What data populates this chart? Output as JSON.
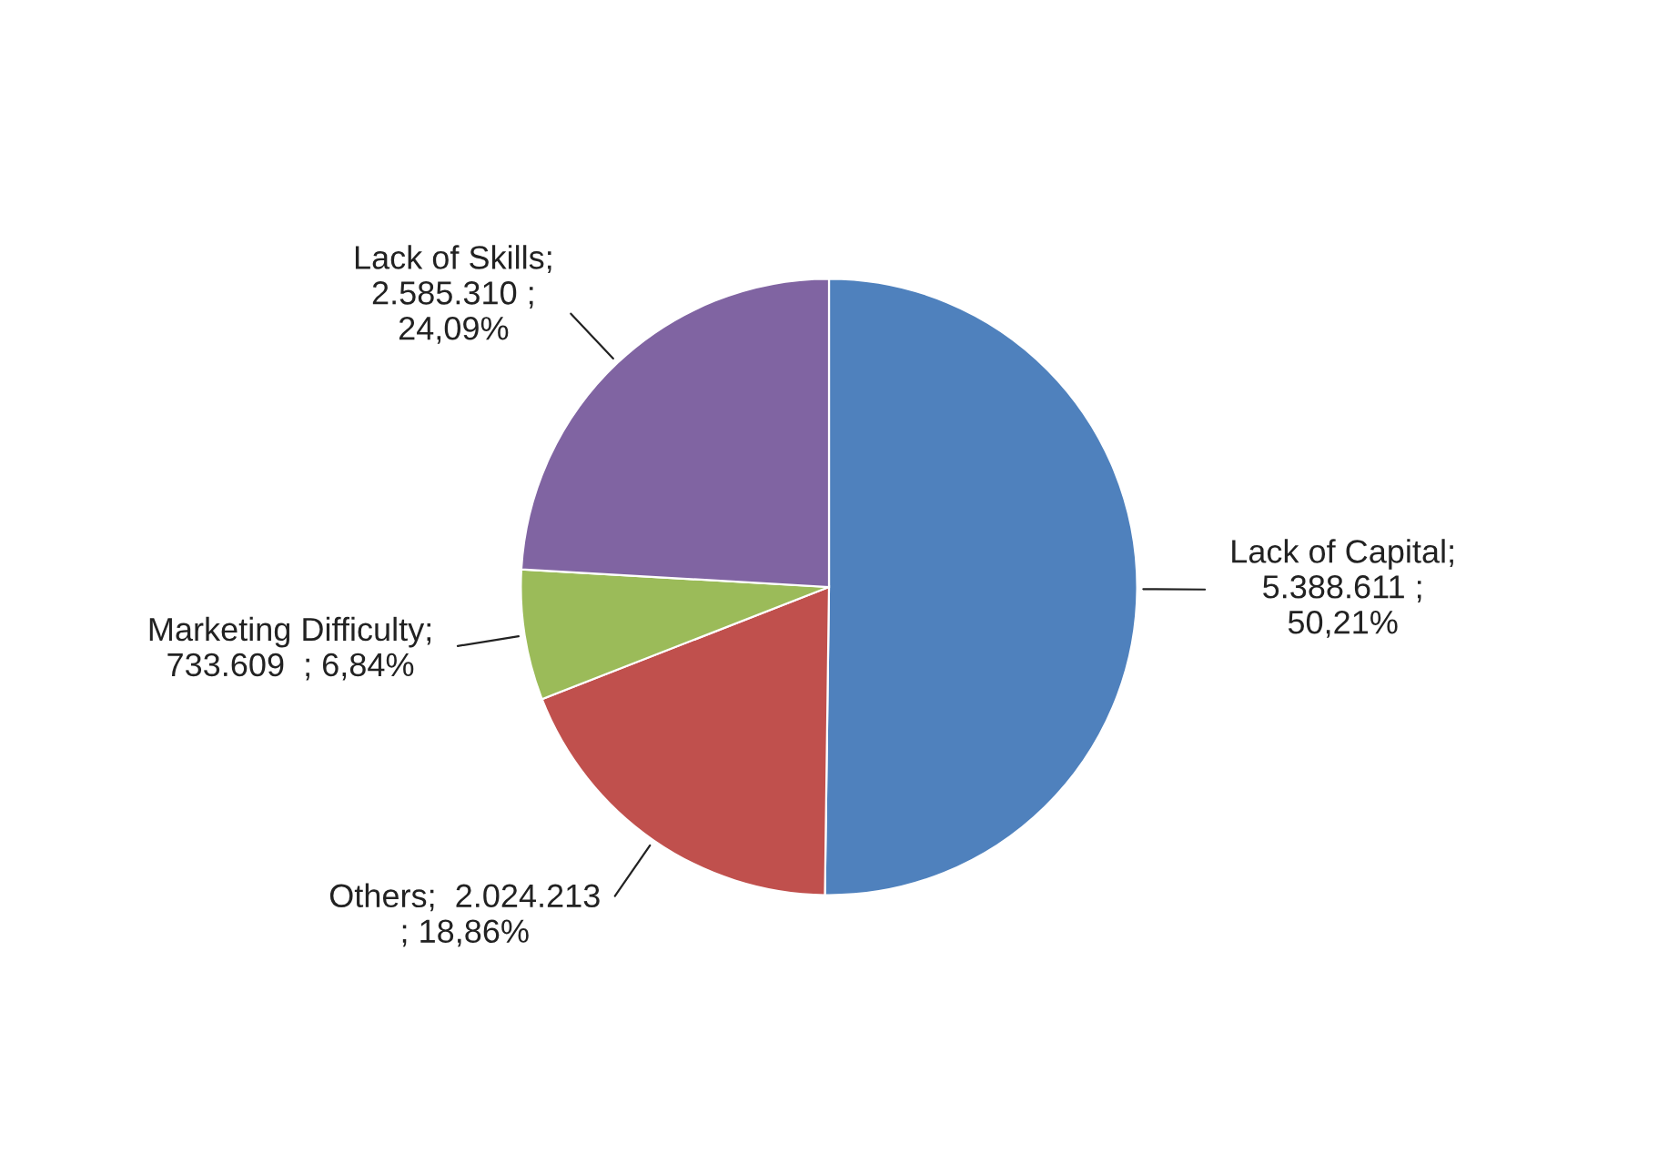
{
  "chart_data": {
    "type": "pie",
    "categories": [
      "Lack of Capital",
      "Others",
      "Marketing Difficulty",
      "Lack of Skills"
    ],
    "values": [
      5388611,
      2024213,
      733609,
      2585310
    ],
    "colors": [
      "#4f81bd",
      "#c0504d",
      "#9bbb59",
      "#8064a2"
    ],
    "value_labels": [
      ";\n5.388.611 ;\n50,21%",
      ";  2.024.213\n; 18,86%",
      ";\n733.609  ; 6,84%",
      ";\n2.585.310 ;\n24,09%"
    ],
    "legend": false
  }
}
